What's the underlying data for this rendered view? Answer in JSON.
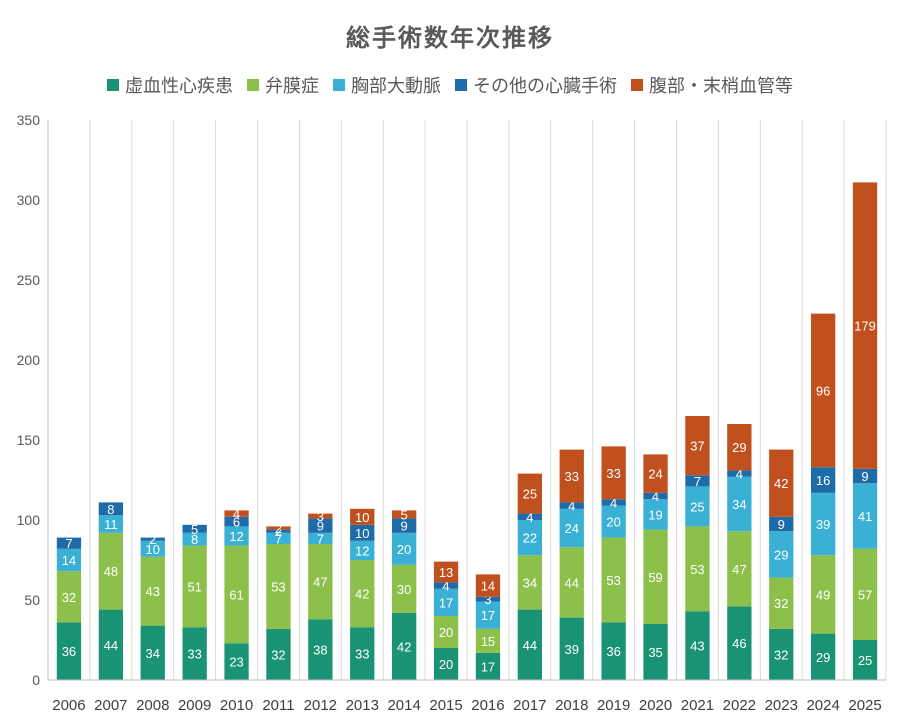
{
  "chart_data": {
    "type": "bar",
    "stacked": true,
    "title": "総手術数年次推移",
    "xlabel": "",
    "ylabel": "",
    "ylim": [
      0,
      350
    ],
    "yticks": [
      0,
      50,
      100,
      150,
      200,
      250,
      300,
      350
    ],
    "grid": "vertical",
    "legend_position": "top",
    "categories": [
      "2006",
      "2007",
      "2008",
      "2009",
      "2010",
      "2011",
      "2012",
      "2013",
      "2014",
      "2015",
      "2016",
      "2017",
      "2018",
      "2019",
      "2020",
      "2021",
      "2022",
      "2023",
      "2024",
      "2025"
    ],
    "series": [
      {
        "name": "虚血性心疾患",
        "color": "#1a9274",
        "values": [
          36,
          44,
          34,
          33,
          23,
          32,
          38,
          33,
          42,
          20,
          17,
          44,
          39,
          36,
          35,
          43,
          46,
          32,
          29,
          25
        ]
      },
      {
        "name": "弁膜症",
        "color": "#8cc04a",
        "values": [
          32,
          48,
          43,
          51,
          61,
          53,
          47,
          42,
          30,
          20,
          15,
          34,
          44,
          53,
          59,
          53,
          47,
          32,
          49,
          57
        ]
      },
      {
        "name": "胸部大動脈",
        "color": "#3ab0d4",
        "values": [
          14,
          11,
          10,
          8,
          12,
          7,
          7,
          12,
          20,
          17,
          17,
          22,
          24,
          20,
          19,
          25,
          34,
          29,
          39,
          41
        ]
      },
      {
        "name": "その他の心臓手術",
        "color": "#1f6ba8",
        "values": [
          7,
          8,
          2,
          5,
          6,
          2,
          9,
          10,
          9,
          4,
          3,
          4,
          4,
          4,
          4,
          7,
          4,
          9,
          16,
          9
        ]
      },
      {
        "name": "腹部・末梢血管等",
        "color": "#c0501d",
        "values": [
          0,
          0,
          0,
          0,
          4,
          2,
          3,
          10,
          5,
          13,
          14,
          25,
          33,
          33,
          24,
          37,
          29,
          42,
          96,
          179
        ]
      }
    ]
  }
}
